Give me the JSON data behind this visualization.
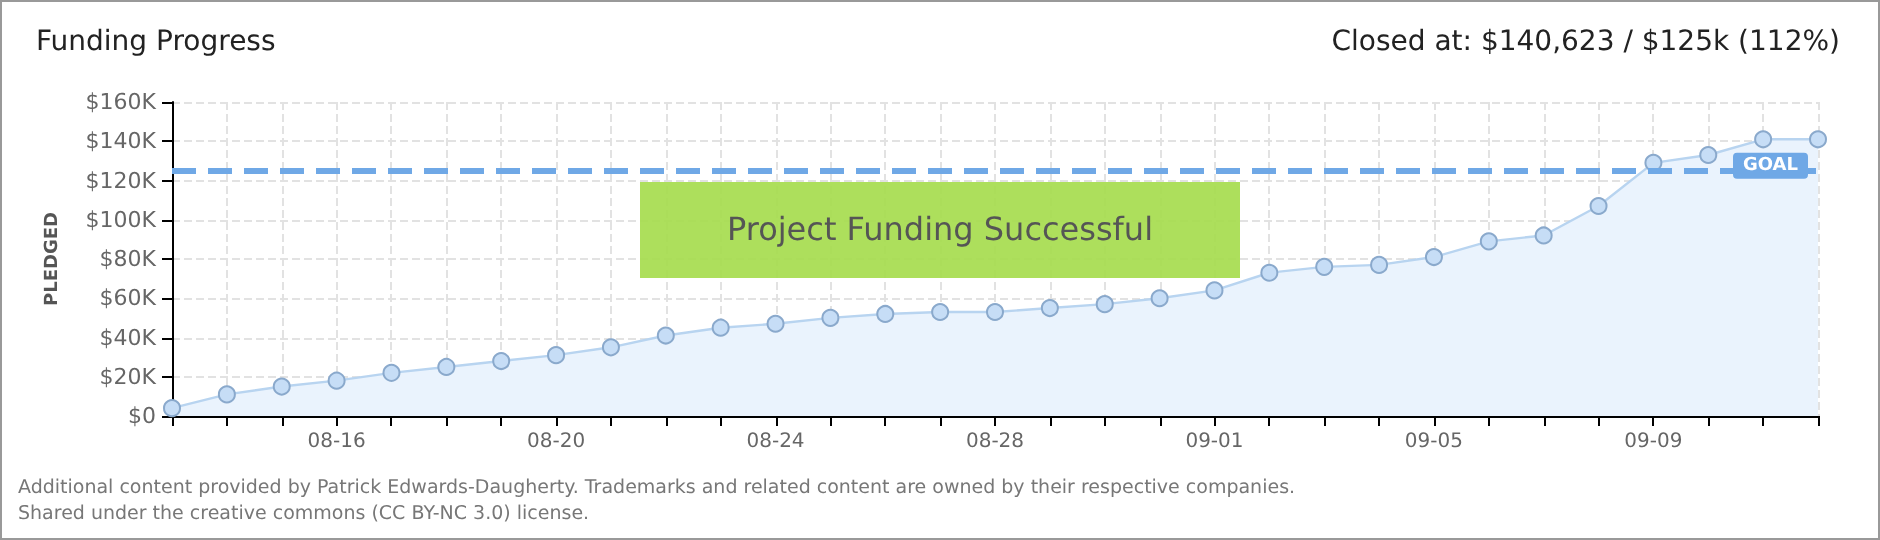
{
  "chart_data": {
    "type": "area",
    "title": "Funding Progress",
    "subtitle": "Closed at: $140,623 / $125k (112%)",
    "ylabel": "PLEDGED",
    "categories": [
      null,
      null,
      null,
      "08-16",
      null,
      null,
      null,
      "08-20",
      null,
      null,
      null,
      "08-24",
      null,
      null,
      null,
      "08-28",
      null,
      null,
      null,
      "09-01",
      null,
      null,
      null,
      "09-05",
      null,
      null,
      null,
      "09-09",
      null,
      null,
      null
    ],
    "series": [
      {
        "color": "#b8d4f0",
        "values": [
          4,
          11,
          15,
          18,
          22,
          25,
          28,
          31,
          35,
          41,
          45,
          47,
          50,
          52,
          53,
          53,
          55,
          57,
          60,
          64,
          73,
          76,
          77,
          81,
          89,
          92,
          107,
          129,
          133,
          141,
          141
        ]
      }
    ],
    "ylim": [
      0,
      160
    ],
    "yticks": [
      {
        "value": 0,
        "label": "$0"
      },
      {
        "value": 20,
        "label": "$20K"
      },
      {
        "value": 40,
        "label": "$40K"
      },
      {
        "value": 60,
        "label": "$60K"
      },
      {
        "value": 80,
        "label": "$80K"
      },
      {
        "value": 100,
        "label": "$100K"
      },
      {
        "value": 120,
        "label": "$120K"
      },
      {
        "value": 140,
        "label": "$140K"
      },
      {
        "value": 160,
        "label": "$160K"
      }
    ],
    "ref_lines": [
      {
        "axis": "y",
        "value": 125,
        "label": "GOAL",
        "color": "#6fa8e6",
        "line_style": "dashed"
      }
    ],
    "annotations": [
      "Project Funding Successful",
      "Additional content provided by Patrick Edwards-Daugherty. Trademarks and related content are owned by their respective companies.",
      "Shared under the creative commons (CC BY-NC 3.0) license."
    ],
    "grid": true,
    "marker": "circle",
    "line_style": "solid"
  }
}
